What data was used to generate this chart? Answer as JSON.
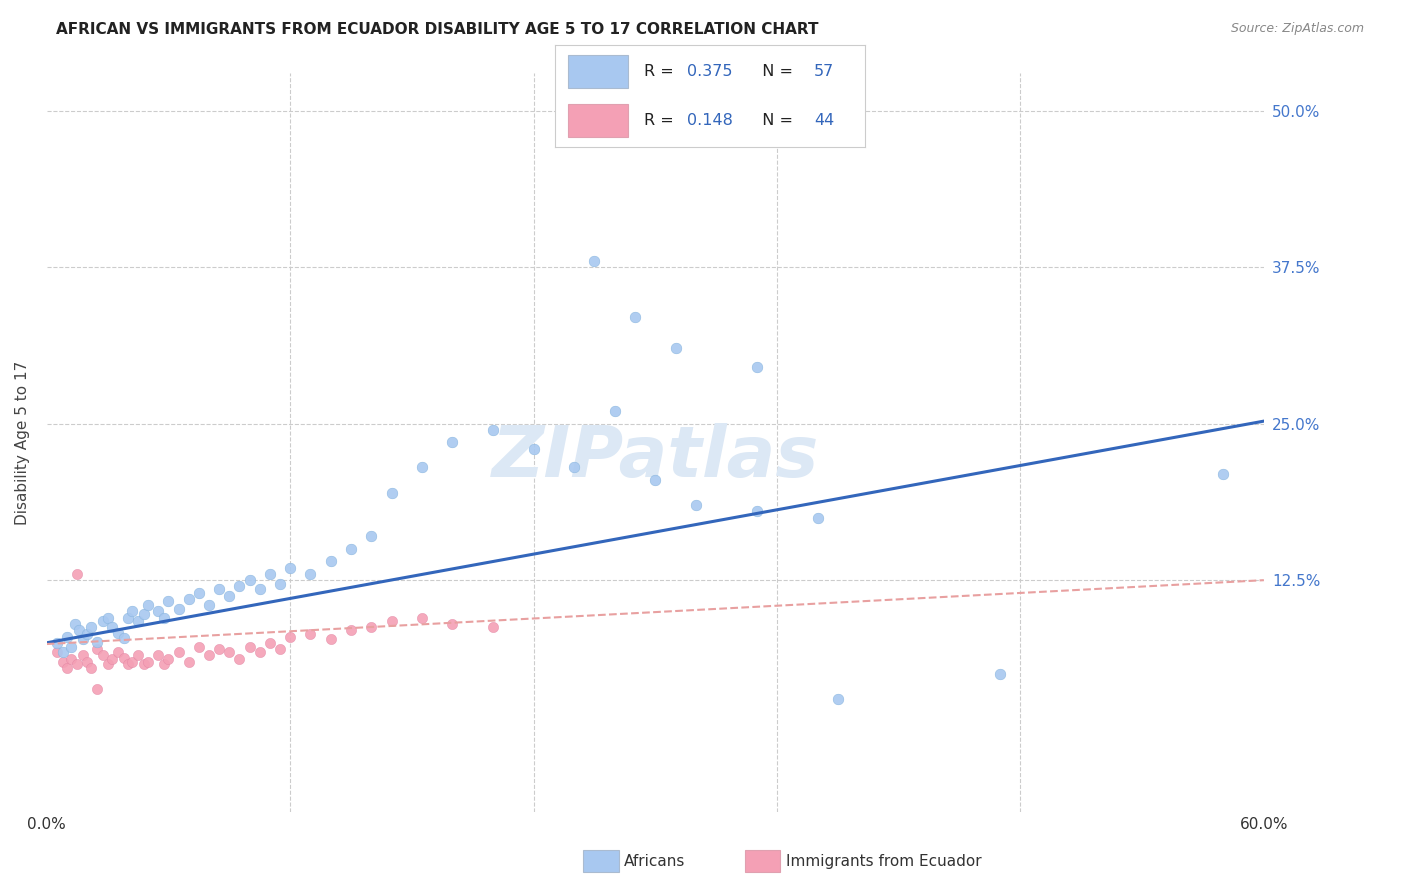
{
  "title": "AFRICAN VS IMMIGRANTS FROM ECUADOR DISABILITY AGE 5 TO 17 CORRELATION CHART",
  "source": "Source: ZipAtlas.com",
  "ylabel": "Disability Age 5 to 17",
  "xlim": [
    0.0,
    0.6
  ],
  "ylim": [
    -0.06,
    0.53
  ],
  "african_R": 0.375,
  "african_N": 57,
  "ecuador_R": 0.148,
  "ecuador_N": 44,
  "african_color": "#a8c8f0",
  "african_edge_color": "#7aadd8",
  "ecuador_color": "#f4a0b5",
  "ecuador_edge_color": "#e080a0",
  "african_line_color": "#3366bb",
  "ecuador_line_color": "#e87878",
  "ecuador_dash_color": "#e8a0a0",
  "legend_text_color": "#3366bb",
  "watermark_color": "#dce8f5",
  "african_line_y0": 0.075,
  "african_line_y1": 0.252,
  "ecuador_line_y0": 0.074,
  "ecuador_line_y1": 0.125,
  "african_x": [
    0.005,
    0.008,
    0.01,
    0.012,
    0.014,
    0.016,
    0.018,
    0.02,
    0.022,
    0.025,
    0.028,
    0.03,
    0.032,
    0.035,
    0.038,
    0.04,
    0.042,
    0.045,
    0.048,
    0.05,
    0.055,
    0.058,
    0.06,
    0.065,
    0.07,
    0.075,
    0.08,
    0.085,
    0.09,
    0.095,
    0.1,
    0.105,
    0.11,
    0.115,
    0.12,
    0.13,
    0.14,
    0.15,
    0.16,
    0.17,
    0.185,
    0.2,
    0.22,
    0.24,
    0.26,
    0.28,
    0.3,
    0.32,
    0.35,
    0.38,
    0.27,
    0.29,
    0.31,
    0.35,
    0.39,
    0.58,
    0.47
  ],
  "african_y": [
    0.075,
    0.068,
    0.08,
    0.072,
    0.09,
    0.085,
    0.078,
    0.082,
    0.088,
    0.076,
    0.092,
    0.095,
    0.088,
    0.083,
    0.079,
    0.095,
    0.1,
    0.092,
    0.098,
    0.105,
    0.1,
    0.095,
    0.108,
    0.102,
    0.11,
    0.115,
    0.105,
    0.118,
    0.112,
    0.12,
    0.125,
    0.118,
    0.13,
    0.122,
    0.135,
    0.13,
    0.14,
    0.15,
    0.16,
    0.195,
    0.215,
    0.235,
    0.245,
    0.23,
    0.215,
    0.26,
    0.205,
    0.185,
    0.18,
    0.175,
    0.38,
    0.335,
    0.31,
    0.295,
    0.03,
    0.21,
    0.05
  ],
  "ecuador_x": [
    0.005,
    0.008,
    0.01,
    0.012,
    0.015,
    0.018,
    0.02,
    0.022,
    0.025,
    0.028,
    0.03,
    0.032,
    0.035,
    0.038,
    0.04,
    0.042,
    0.045,
    0.048,
    0.05,
    0.055,
    0.058,
    0.06,
    0.065,
    0.07,
    0.075,
    0.08,
    0.085,
    0.09,
    0.095,
    0.1,
    0.105,
    0.11,
    0.115,
    0.12,
    0.13,
    0.14,
    0.15,
    0.16,
    0.17,
    0.185,
    0.2,
    0.22,
    0.015,
    0.025
  ],
  "ecuador_y": [
    0.068,
    0.06,
    0.055,
    0.062,
    0.058,
    0.065,
    0.06,
    0.055,
    0.07,
    0.065,
    0.058,
    0.062,
    0.068,
    0.063,
    0.058,
    0.06,
    0.065,
    0.058,
    0.06,
    0.065,
    0.058,
    0.062,
    0.068,
    0.06,
    0.072,
    0.065,
    0.07,
    0.068,
    0.062,
    0.072,
    0.068,
    0.075,
    0.07,
    0.08,
    0.082,
    0.078,
    0.085,
    0.088,
    0.092,
    0.095,
    0.09,
    0.088,
    0.13,
    0.038
  ],
  "grid_dashed_color": "#cccccc",
  "grid_yticks": [
    0.125,
    0.25,
    0.375,
    0.5
  ],
  "grid_xticks": [
    0.12,
    0.24,
    0.36,
    0.48
  ],
  "ytick_labels": [
    "12.5%",
    "25.0%",
    "37.5%",
    "50.0%"
  ],
  "right_tick_color": "#4477cc"
}
